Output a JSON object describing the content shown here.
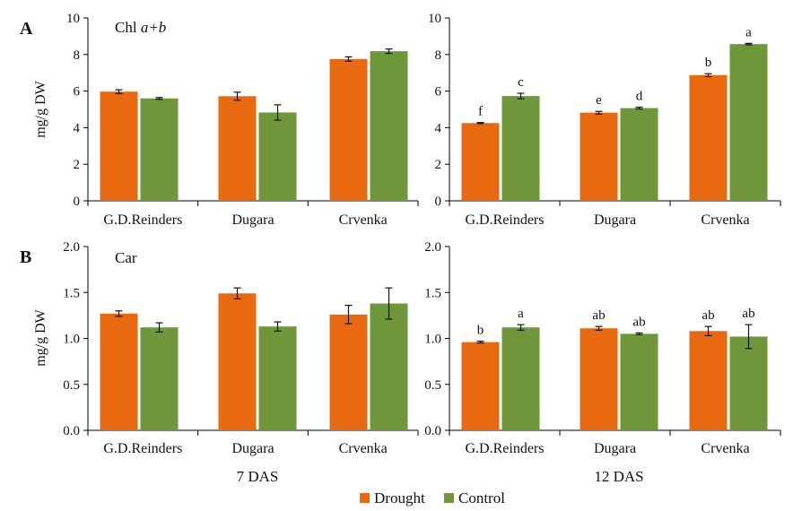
{
  "chart_data": [
    {
      "type": "bar",
      "panel": "A",
      "title": "Chl a+b",
      "title_plain": "Chl ",
      "title_italic": "a+b",
      "ylabel": "mg/g DW",
      "ylim": [
        0,
        10
      ],
      "yticks": [
        "0",
        "2",
        "4",
        "6",
        "8",
        "10"
      ],
      "categories": [
        "G.D.Reinders",
        "Dugara",
        "Crvenka"
      ],
      "series": [
        {
          "name": "Drought",
          "values": [
            5.97,
            5.72,
            7.75
          ],
          "errors": [
            0.1,
            0.22,
            0.12
          ],
          "color": "#e8690f"
        },
        {
          "name": "Control",
          "values": [
            5.6,
            4.83,
            8.18
          ],
          "errors": [
            0.05,
            0.42,
            0.12
          ],
          "color": "#70963a"
        }
      ],
      "sig_labels": null
    },
    {
      "type": "bar",
      "panel": "",
      "title": "",
      "ylabel": "",
      "ylim": [
        0,
        10
      ],
      "yticks": [
        "0",
        "2",
        "4",
        "6",
        "8",
        "10"
      ],
      "categories": [
        "G.D.Reinders",
        "Dugara",
        "Crvenka"
      ],
      "series": [
        {
          "name": "Drought",
          "values": [
            4.25,
            4.82,
            6.87
          ],
          "errors": [
            0.03,
            0.07,
            0.08
          ],
          "color": "#e8690f"
        },
        {
          "name": "Control",
          "values": [
            5.73,
            5.07,
            8.57
          ],
          "errors": [
            0.15,
            0.05,
            0.04
          ],
          "color": "#70963a"
        }
      ],
      "sig_labels": [
        [
          "f",
          "c"
        ],
        [
          "e",
          "d"
        ],
        [
          "b",
          "a"
        ]
      ]
    },
    {
      "type": "bar",
      "panel": "B",
      "title": "Car",
      "ylabel": "mg/g DW",
      "ylim": [
        0,
        2.0
      ],
      "yticks": [
        "0.0",
        "0.5",
        "1.0",
        "1.5",
        "2.0"
      ],
      "categories": [
        "G.D.Reinders",
        "Dugara",
        "Crvenka"
      ],
      "series": [
        {
          "name": "Drought",
          "values": [
            1.27,
            1.49,
            1.26
          ],
          "errors": [
            0.03,
            0.06,
            0.1
          ],
          "color": "#e8690f"
        },
        {
          "name": "Control",
          "values": [
            1.12,
            1.13,
            1.38
          ],
          "errors": [
            0.05,
            0.05,
            0.17
          ],
          "color": "#70963a"
        }
      ],
      "sig_labels": null
    },
    {
      "type": "bar",
      "panel": "",
      "title": "",
      "ylabel": "",
      "ylim": [
        0,
        2.0
      ],
      "yticks": [
        "0.0",
        "0.5",
        "1.0",
        "1.5",
        "2.0"
      ],
      "categories": [
        "G.D.Reinders",
        "Dugara",
        "Crvenka"
      ],
      "series": [
        {
          "name": "Drought",
          "values": [
            0.96,
            1.11,
            1.08
          ],
          "errors": [
            0.01,
            0.02,
            0.05
          ],
          "color": "#e8690f"
        },
        {
          "name": "Control",
          "values": [
            1.12,
            1.05,
            1.02
          ],
          "errors": [
            0.03,
            0.01,
            0.13
          ],
          "color": "#70963a"
        }
      ],
      "sig_labels": [
        [
          "b",
          "a"
        ],
        [
          "ab",
          "ab"
        ],
        [
          "ab",
          "ab"
        ]
      ]
    }
  ],
  "column_labels": [
    "7 DAS",
    "12 DAS"
  ],
  "legend": [
    {
      "name": "Drought",
      "color": "#e8690f"
    },
    {
      "name": "Control",
      "color": "#70963a"
    }
  ]
}
